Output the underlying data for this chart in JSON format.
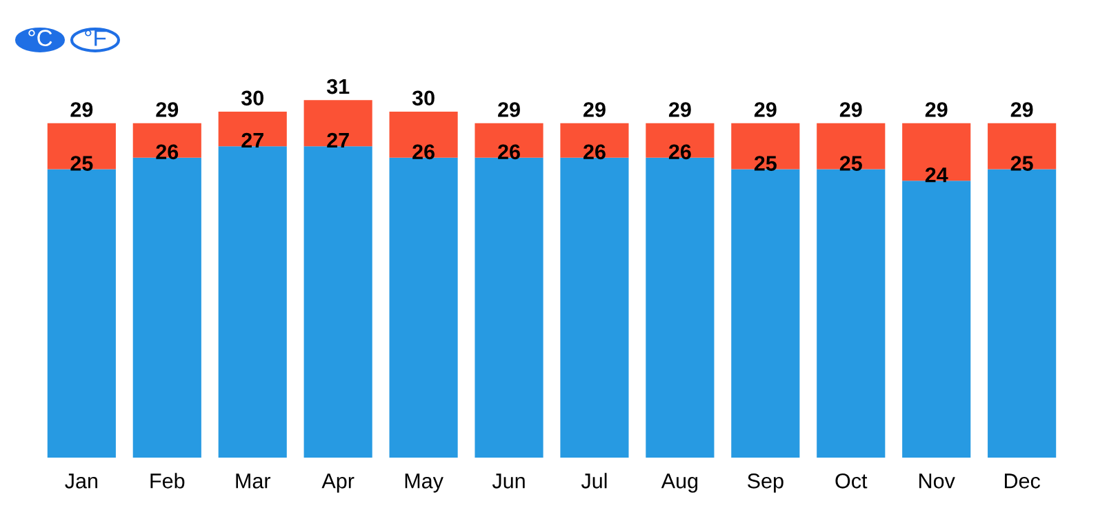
{
  "chart_data": {
    "type": "bar",
    "stacked": true,
    "categories": [
      "Jan",
      "Feb",
      "Mar",
      "Apr",
      "May",
      "Jun",
      "Jul",
      "Aug",
      "Sep",
      "Oct",
      "Nov",
      "Dec"
    ],
    "series": [
      {
        "color": "#279ae2",
        "values": [
          25,
          26,
          27,
          27,
          26,
          26,
          26,
          26,
          25,
          25,
          24,
          25
        ],
        "value_labels": [
          "25",
          "26",
          "27",
          "27",
          "26",
          "26",
          "26",
          "26",
          "25",
          "25",
          "24",
          "25"
        ]
      },
      {
        "color": "#fb5235",
        "values": [
          4,
          3,
          3,
          4,
          4,
          3,
          3,
          3,
          4,
          4,
          5,
          4
        ]
      }
    ],
    "totals": [
      "29",
      "29",
      "30",
      "31",
      "30",
      "29",
      "29",
      "29",
      "29",
      "29",
      "29",
      "29"
    ],
    "grid": false,
    "legend": false,
    "tick_labels": "x",
    "annotations": [
      "°C",
      "°F"
    ]
  }
}
